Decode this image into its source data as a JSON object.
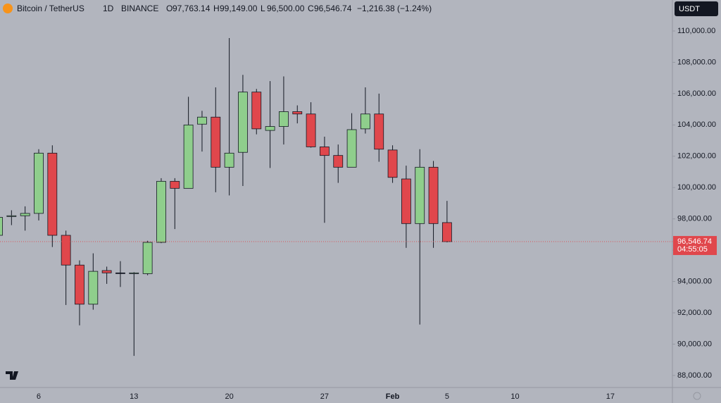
{
  "chart_data": {
    "type": "candlestick",
    "title": "Bitcoin / TetherUS",
    "interval": "1D",
    "exchange": "BINANCE",
    "ohlc_header": [
      {
        "prefix": "O",
        "text": "97,763.14"
      },
      {
        "prefix": "H",
        "text": "99,149.00"
      },
      {
        "prefix": "L",
        "text": "96,500.00"
      },
      {
        "prefix": "C",
        "text": "96,546.74"
      }
    ],
    "change": "−1,216.38 (−1.24%)",
    "currency": "USDT",
    "countdown": "04:55:05",
    "last_price": {
      "value": 96546.74,
      "label": "96,546.74"
    },
    "up_color": "#8fce8c",
    "down_color": "#e0474c",
    "categories": [
      null,
      null,
      null,
      "6",
      null,
      null,
      null,
      null,
      null,
      null,
      "13",
      null,
      null,
      null,
      null,
      null,
      null,
      "20",
      null,
      null,
      null,
      null,
      null,
      null,
      "27",
      null,
      null,
      null,
      null,
      "Feb",
      null,
      null,
      null,
      "5",
      null,
      null,
      null,
      null,
      "10",
      null,
      null,
      null,
      null,
      null,
      null,
      "17",
      null,
      null,
      null
    ],
    "open": [
      96950,
      98150,
      98200,
      98350,
      102200,
      96950,
      95050,
      92550,
      94700,
      94550,
      94500,
      94500,
      96500,
      100400,
      99950,
      104050,
      104500,
      101300,
      102250,
      106100,
      103650,
      103900,
      104850,
      104700,
      102600,
      102050,
      101300,
      103750,
      104700,
      102400,
      100550,
      97700,
      101300,
      97763.14,
      null,
      null,
      null,
      null,
      null,
      null,
      null,
      null,
      null,
      null,
      null,
      null,
      null,
      null,
      null
    ],
    "high": [
      98200,
      98550,
      98800,
      102450,
      102700,
      97250,
      95350,
      95800,
      94950,
      95300,
      94600,
      96600,
      100600,
      100600,
      105800,
      104900,
      106400,
      109550,
      107200,
      106300,
      106800,
      107100,
      105250,
      105450,
      103250,
      102750,
      104750,
      106400,
      106000,
      102700,
      101400,
      102450,
      101700,
      99149,
      null,
      null,
      null,
      null,
      null,
      null,
      null,
      null,
      null,
      null,
      null,
      null,
      null,
      null,
      null
    ],
    "low": [
      96900,
      97600,
      97250,
      97900,
      96200,
      92500,
      91200,
      92200,
      93850,
      93650,
      89250,
      94400,
      96450,
      97350,
      99950,
      102300,
      99700,
      99500,
      100100,
      103400,
      101250,
      102750,
      104100,
      102550,
      97750,
      100300,
      101300,
      103450,
      101650,
      100300,
      96150,
      91250,
      96150,
      96500,
      null,
      null,
      null,
      null,
      null,
      null,
      null,
      null,
      null,
      null,
      null,
      null,
      null,
      null,
      null
    ],
    "close": [
      98100,
      98200,
      98350,
      102200,
      96950,
      95050,
      92550,
      94650,
      94550,
      94550,
      94550,
      96500,
      100400,
      99950,
      104000,
      104500,
      101300,
      102200,
      106100,
      103750,
      103900,
      104850,
      104700,
      102600,
      102050,
      101300,
      103700,
      104700,
      102450,
      100650,
      97700,
      101300,
      97700,
      96546.74,
      null,
      null,
      null,
      null,
      null,
      null,
      null,
      null,
      null,
      null,
      null,
      null,
      null,
      null,
      null
    ],
    "ylim": [
      87230,
      111980
    ],
    "yticks": [
      {
        "value": 88000,
        "label": "88,000.00"
      },
      {
        "value": 90000,
        "label": "90,000.00"
      },
      {
        "value": 92000,
        "label": "92,000.00"
      },
      {
        "value": 94000,
        "label": "94,000.00"
      },
      {
        "value": 96000,
        "label": "96,000.00"
      },
      {
        "value": 98000,
        "label": "98,000.00"
      },
      {
        "value": 100000,
        "label": "100,000.00"
      },
      {
        "value": 102000,
        "label": "102,000.00"
      },
      {
        "value": 104000,
        "label": "104,000.00"
      },
      {
        "value": 106000,
        "label": "106,000.00"
      },
      {
        "value": 108000,
        "label": "108,000.00"
      },
      {
        "value": 110000,
        "label": "110,000.00"
      }
    ]
  }
}
